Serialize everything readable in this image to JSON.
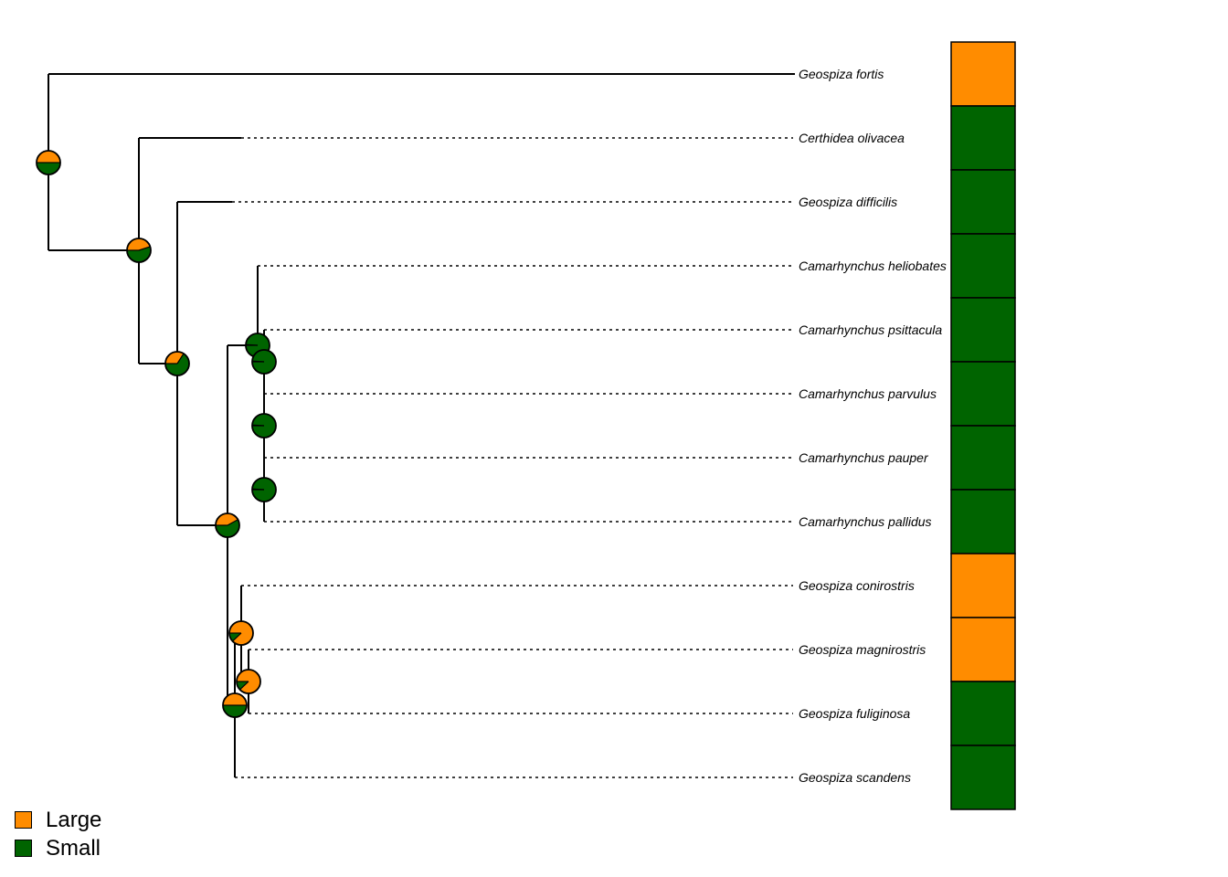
{
  "colors": {
    "Large": "#ff8c00",
    "Small": "#006400",
    "line": "#000000"
  },
  "legend": [
    {
      "label": "Large",
      "state": "Large"
    },
    {
      "label": "Small",
      "state": "Small"
    }
  ],
  "taxa": [
    {
      "name": "Geospiza fortis",
      "state": "Large"
    },
    {
      "name": "Certhidea olivacea",
      "state": "Small"
    },
    {
      "name": "Geospiza difficilis",
      "state": "Small"
    },
    {
      "name": "Camarhynchus heliobates",
      "state": "Small"
    },
    {
      "name": "Camarhynchus psittacula",
      "state": "Small"
    },
    {
      "name": "Camarhynchus parvulus",
      "state": "Small"
    },
    {
      "name": "Camarhynchus pauper",
      "state": "Small"
    },
    {
      "name": "Camarhynchus pallidus",
      "state": "Small"
    },
    {
      "name": "Geospiza conirostris",
      "state": "Large"
    },
    {
      "name": "Geospiza magnirostris",
      "state": "Large"
    },
    {
      "name": "Geospiza fuliginosa",
      "state": "Small"
    },
    {
      "name": "Geospiza scandens",
      "state": "Small"
    }
  ],
  "nodes": [
    {
      "id": "n1",
      "large": 0.5
    },
    {
      "id": "n2",
      "large": 0.45
    },
    {
      "id": "n3",
      "large": 0.34
    },
    {
      "id": "n4",
      "large": 0.42
    },
    {
      "id": "n5",
      "large": 0.01
    },
    {
      "id": "n6",
      "large": 0.01
    },
    {
      "id": "n7",
      "large": 0.01
    },
    {
      "id": "n8",
      "large": 0.01
    },
    {
      "id": "n9",
      "large": 0.5
    },
    {
      "id": "n10",
      "large": 0.88
    },
    {
      "id": "n11",
      "large": 0.88
    }
  ]
}
